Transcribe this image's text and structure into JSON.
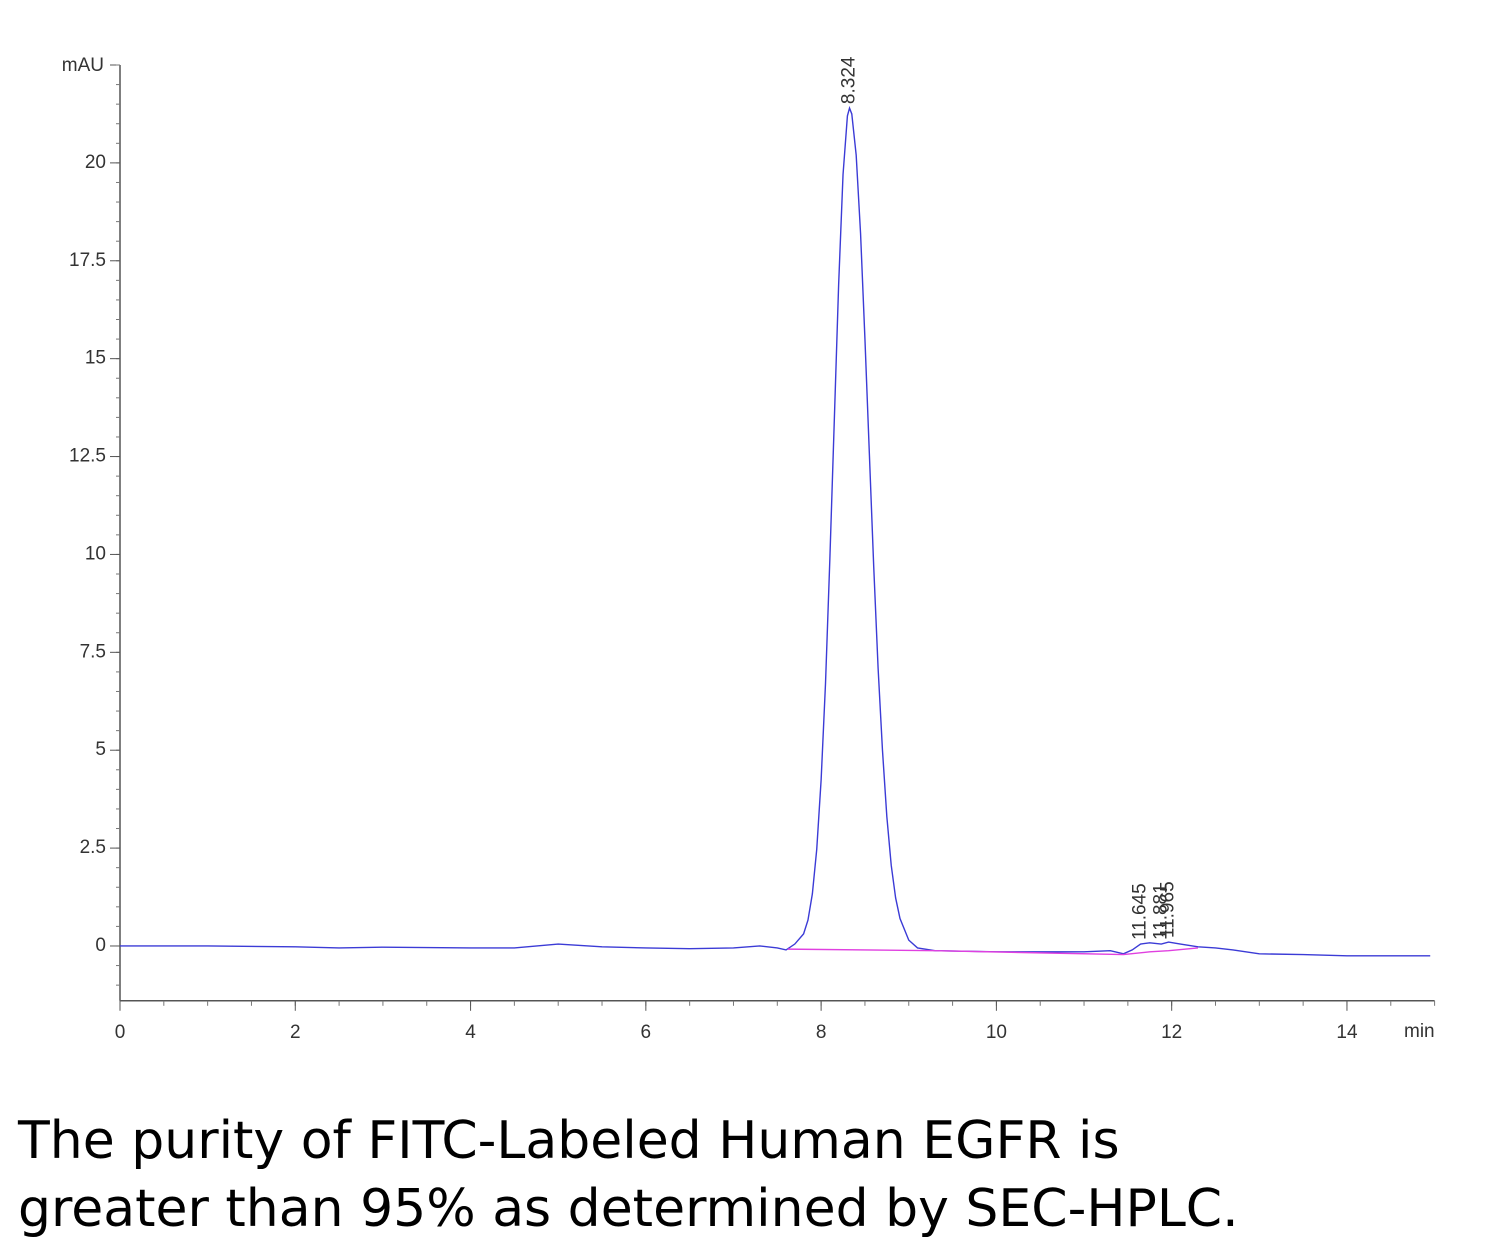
{
  "chart_data": {
    "type": "line",
    "x_label": "min",
    "y_label": "mAU",
    "xlim": [
      0,
      15
    ],
    "ylim": [
      -1.4,
      22.5
    ],
    "xticks": [
      0,
      2,
      4,
      6,
      8,
      10,
      12,
      14
    ],
    "yticks": [
      0,
      2.5,
      5,
      7.5,
      10,
      12.5,
      15,
      17.5,
      20
    ],
    "series": [
      {
        "color": "#3b3bd6",
        "x": [
          0,
          1,
          2,
          2.5,
          3,
          4,
          4.5,
          5,
          5.5,
          6,
          6.5,
          7,
          7.3,
          7.5,
          7.6,
          7.7,
          7.8,
          7.85,
          7.9,
          7.95,
          8.0,
          8.05,
          8.1,
          8.15,
          8.2,
          8.25,
          8.3,
          8.324,
          8.35,
          8.4,
          8.45,
          8.5,
          8.55,
          8.6,
          8.65,
          8.7,
          8.75,
          8.8,
          8.85,
          8.9,
          9.0,
          9.1,
          9.3,
          10,
          11,
          11.3,
          11.45,
          11.55,
          11.645,
          11.75,
          11.881,
          11.965,
          12.1,
          12.3,
          12.5,
          12.7,
          13,
          13.5,
          14,
          14.95
        ],
        "values": [
          0,
          0,
          -0.02,
          -0.05,
          -0.03,
          -0.05,
          -0.05,
          0.05,
          -0.02,
          -0.05,
          -0.07,
          -0.05,
          0,
          -0.05,
          -0.1,
          0.05,
          0.31,
          0.66,
          1.33,
          2.47,
          4.24,
          6.7,
          9.9,
          13.4,
          16.9,
          19.7,
          21.2,
          21.4,
          21.25,
          20.2,
          18.2,
          15.5,
          12.6,
          9.7,
          7.1,
          5.0,
          3.3,
          2.06,
          1.23,
          0.7,
          0.15,
          -0.05,
          -0.12,
          -0.15,
          -0.15,
          -0.12,
          -0.2,
          -0.1,
          0.05,
          0.08,
          0.05,
          0.1,
          0.05,
          -0.02,
          -0.05,
          -0.1,
          -0.2,
          -0.22,
          -0.25,
          -0.25
        ]
      },
      {
        "color": "#e040e0",
        "x": [
          7.62,
          9.3,
          11.45,
          11.75,
          11.965,
          12.3
        ],
        "values": [
          -0.08,
          -0.12,
          -0.22,
          -0.15,
          -0.12,
          -0.05
        ]
      }
    ],
    "peak_labels": [
      "8.324",
      "11.645",
      "11.881",
      "11.965"
    ]
  },
  "caption": [
    "The purity of FITC-Labeled Human EGFR is",
    "greater than 95% as determined by SEC-HPLC."
  ]
}
